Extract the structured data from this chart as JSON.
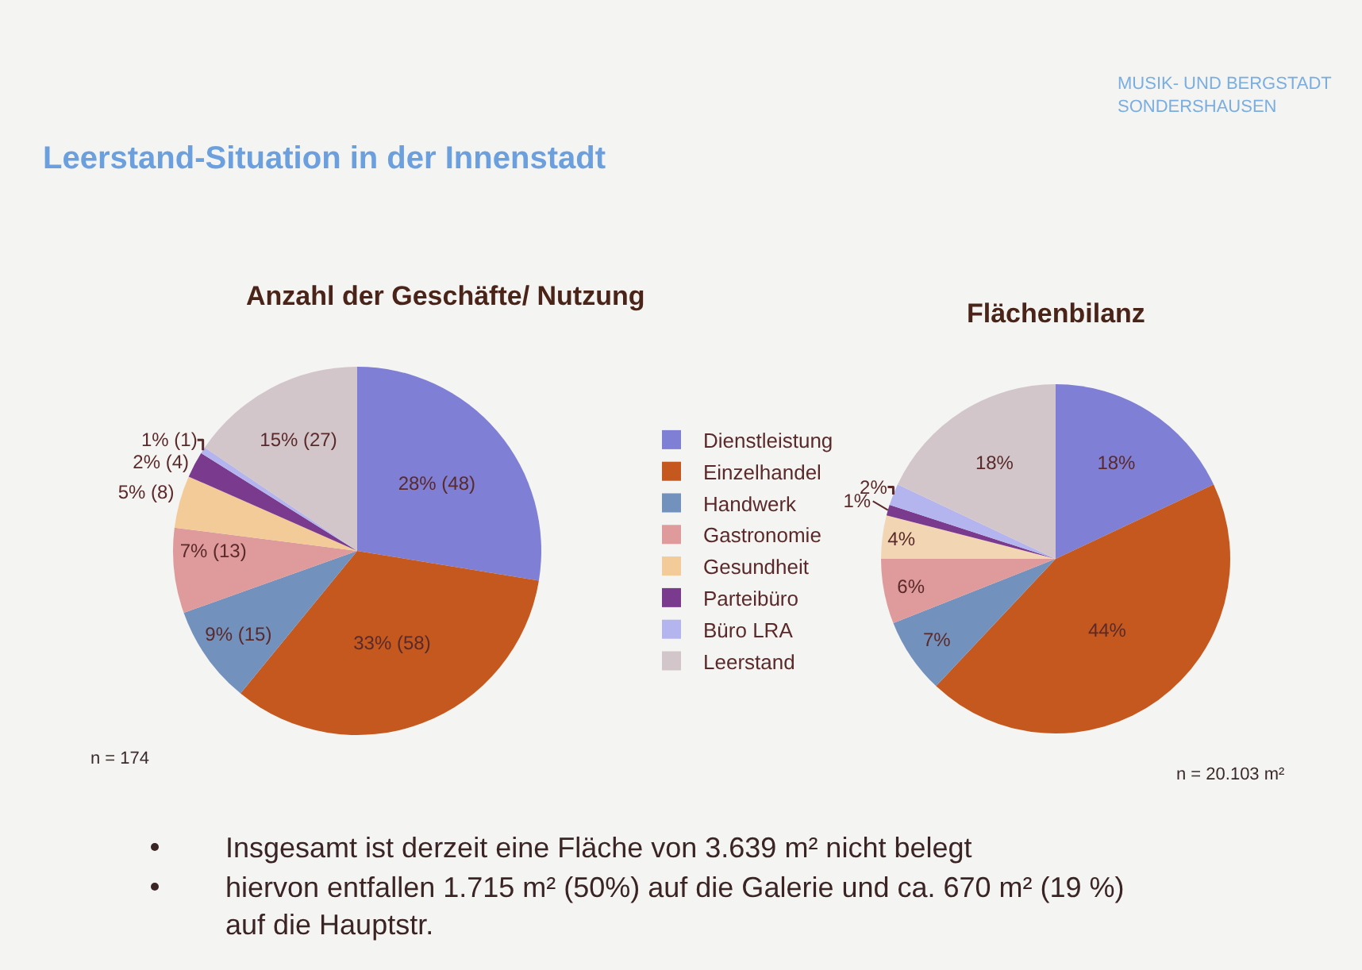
{
  "chart_data": [
    {
      "type": "other",
      "title": "Leerstand-Situation in der Innenstadt",
      "annotations": [
        "MUSIK- UND BERGSTADT\nSONDERSHAUSEN"
      ]
    },
    {
      "type": "pie",
      "title": "Anzahl der Geschäfte/ Nutzung",
      "categories": [
        "Dienstleistung",
        "Einzelhandel",
        "Handwerk",
        "Gastronomie",
        "Gesundheit",
        "Parteibüro",
        "Büro LRA",
        "Leerstand"
      ],
      "values": [
        48,
        58,
        15,
        13,
        8,
        4,
        1,
        27
      ],
      "value_labels": [
        "28% (48)",
        "33% (58)",
        "9% (15)",
        "7% (13)",
        "5% (8)",
        "2% (4)",
        "1% (1)",
        "15% (27)"
      ],
      "colors": [
        "#7f7fd5",
        "#c4581e",
        "#7391bd",
        "#df9a9c",
        "#f2cb98",
        "#7a3b8e",
        "#b4b4ee",
        "#d2c6ca"
      ],
      "legend": "right",
      "annotations": [
        "n = 174"
      ]
    },
    {
      "type": "pie",
      "title": "Flächenbilanz",
      "categories": [
        null,
        null,
        null,
        null,
        null,
        null,
        null,
        null
      ],
      "values": [
        18,
        44,
        7,
        6,
        4,
        1,
        2,
        18
      ],
      "value_labels": [
        "18%",
        "44%",
        "7%",
        "6%",
        "4%",
        "1%",
        "2%",
        "18%"
      ],
      "colors": [
        "#7f7fd5",
        "#c4581e",
        "#7391bd",
        "#df9a9c",
        "#f2d6b4",
        "#7a3b8e",
        "#b4b4ee",
        "#d2c6ca"
      ],
      "annotations": [
        "n = 20.103 m²"
      ]
    },
    {
      "type": "other",
      "annotations": [
        "Insgesamt ist derzeit eine Fläche von 3.639 m² nicht belegt",
        "hiervon entfallen 1.715 m² (50%) auf die Galerie und ca. 670 m² (19 %) auf die Hauptstr."
      ]
    }
  ]
}
